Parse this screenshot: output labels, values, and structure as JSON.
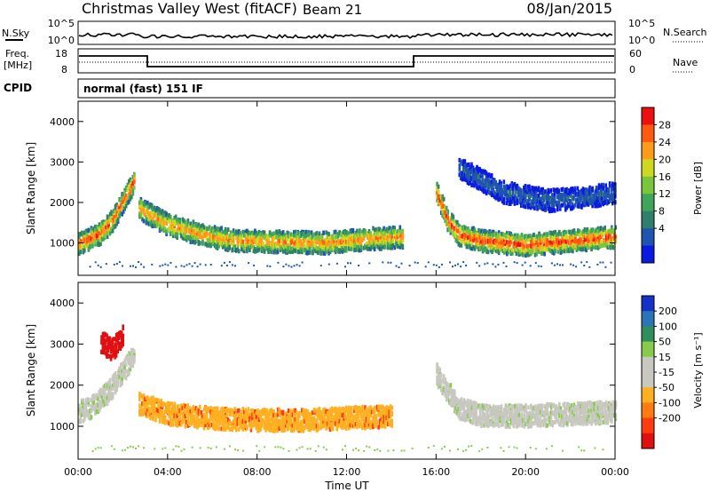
{
  "header": {
    "station": "Christmas Valley West (fitACF)",
    "beam": "Beam 21",
    "date": "08/Jan/2015"
  },
  "top_panels": {
    "nsky_label": "N.Sky",
    "nsearch_label": "N.Search",
    "nsky_ticks": [
      "10^5",
      "10^0"
    ],
    "nsearch_ticks": [
      "10^5",
      "10^0"
    ],
    "freq_label_1": "Freq.",
    "freq_label_2": "[MHz]",
    "freq_ticks": [
      "18",
      "8"
    ],
    "nave_label": "Nave",
    "nave_ticks": [
      "60",
      "0"
    ],
    "cpid_label": "CPID",
    "cpid_value": "normal (fast) 151 IF"
  },
  "colors": {
    "power_scale": [
      "#0a1adf",
      "#1f55b0",
      "#2f7f6a",
      "#3fa55a",
      "#79c63a",
      "#cfd820",
      "#ff9a1a",
      "#ff5a10",
      "#ee1010"
    ],
    "velocity_scale": [
      "#1432c8",
      "#2a74b8",
      "#2f8f5a",
      "#86cc4a",
      "#c8c8c0",
      "#c8c8c0",
      "#ffb020",
      "#ff7a10",
      "#ff3c10",
      "#e01010"
    ]
  },
  "power_colorbar": {
    "label": "Power [dB]",
    "ticks": [
      "28",
      "24",
      "20",
      "16",
      "12",
      "8",
      "4"
    ]
  },
  "velocity_colorbar": {
    "label": "Velocity [m s⁻¹]",
    "ticks": [
      "200",
      "100",
      "50",
      "15",
      "-15",
      "-50",
      "-100",
      "-200"
    ]
  },
  "chart_data": [
    {
      "type": "heatmap",
      "panel": "power",
      "ylabel": "Slant Range [km]",
      "xlabel": "",
      "ylim": [
        200,
        4500
      ],
      "yticks": [
        "4000",
        "3000",
        "2000",
        "1000"
      ],
      "xticks": [
        "00:00",
        "04:00",
        "08:00",
        "12:00",
        "16:00",
        "20:00",
        "00:00"
      ],
      "colorbar_range_db": [
        0,
        30
      ],
      "bands": [
        {
          "x": [
            0.0,
            0.5,
            1.0,
            1.5,
            2.0,
            2.5
          ],
          "range_km": [
            1050,
            1150,
            1300,
            1600,
            2100,
            2600
          ],
          "power_db": 27
        },
        {
          "x": [
            2.7,
            4.0,
            5.5,
            7.0,
            9.0,
            11.0,
            13.0,
            14.5
          ],
          "range_km": [
            1900,
            1500,
            1250,
            1100,
            1080,
            1050,
            1150,
            1200
          ],
          "power_db": 24
        },
        {
          "x": [
            16.0,
            16.5,
            17.0,
            18.0,
            19.0,
            20.0,
            21.0,
            22.0,
            23.0,
            24.0
          ],
          "range_km": [
            2300,
            1600,
            1250,
            1100,
            1050,
            1000,
            1050,
            1100,
            1150,
            1200
          ],
          "power_db": 28
        },
        {
          "x": [
            17.0,
            19.0,
            21.0,
            23.0,
            24.0
          ],
          "range_km": [
            2900,
            2300,
            2100,
            2200,
            2300
          ],
          "power_db": 6
        }
      ]
    },
    {
      "type": "heatmap",
      "panel": "velocity",
      "ylabel": "Slant Range [km]",
      "xlabel": "Time UT",
      "ylim": [
        200,
        4500
      ],
      "yticks": [
        "4000",
        "3000",
        "2000",
        "1000"
      ],
      "xticks": [
        "00:00",
        "04:00",
        "08:00",
        "12:00",
        "16:00",
        "20:00",
        "00:00"
      ],
      "colorbar_range": [
        -250,
        250
      ],
      "bands": [
        {
          "x": [
            0.0,
            0.5,
            1.0,
            1.5,
            2.0,
            2.5
          ],
          "range_km": [
            1400,
            1500,
            1700,
            2000,
            2400,
            2800
          ],
          "velocity": 0
        },
        {
          "x": [
            2.7,
            4.0,
            6.0,
            8.0,
            10.0,
            12.0,
            14.0
          ],
          "range_km": [
            1600,
            1350,
            1250,
            1200,
            1200,
            1250,
            1300
          ],
          "velocity": -60
        },
        {
          "x": [
            16.0,
            17.0,
            18.0,
            20.0,
            22.0,
            24.0
          ],
          "range_km": [
            2300,
            1500,
            1300,
            1300,
            1350,
            1400
          ],
          "velocity": 0
        },
        {
          "x": [
            1.0,
            1.5,
            2.0
          ],
          "range_km": [
            3100,
            2900,
            3300
          ],
          "velocity": -220
        }
      ]
    }
  ]
}
